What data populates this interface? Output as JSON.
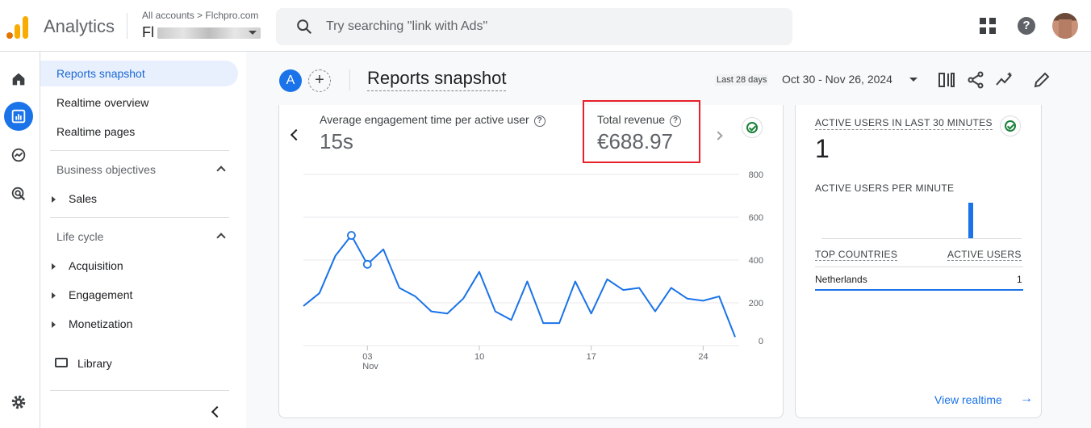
{
  "header": {
    "app_title": "Analytics",
    "account_breadcrumb": "All accounts > Flchpro.com",
    "account_name": "Fl",
    "search_placeholder": "Try searching \"link with Ads\""
  },
  "rail": {
    "icons": [
      "home-icon",
      "reports-icon",
      "explore-icon",
      "advertising-icon",
      "settings-icon"
    ]
  },
  "nav": {
    "reports_snapshot": "Reports snapshot",
    "realtime_overview": "Realtime overview",
    "realtime_pages": "Realtime pages",
    "business_objectives": "Business objectives",
    "sales": "Sales",
    "life_cycle": "Life cycle",
    "acquisition": "Acquisition",
    "engagement": "Engagement",
    "monetization": "Monetization",
    "library": "Library"
  },
  "toolbar": {
    "comparison_avatar": "A",
    "add_comparison": "+",
    "page_title": "Reports snapshot",
    "date_tag": "Last 28 days",
    "date_range": "Oct 30 - Nov 26, 2024"
  },
  "metrics": {
    "engagement_label": "Average engagement time per active user",
    "engagement_value": "15s",
    "revenue_label": "Total revenue",
    "revenue_value": "€688.97",
    "help_glyph": "?"
  },
  "chart_data": {
    "type": "line",
    "x": [
      "Oct 30",
      "Oct 31",
      "Nov 1",
      "Nov 2",
      "Nov 3",
      "Nov 4",
      "Nov 5",
      "Nov 6",
      "Nov 7",
      "Nov 8",
      "Nov 9",
      "Nov 10",
      "Nov 11",
      "Nov 12",
      "Nov 13",
      "Nov 14",
      "Nov 15",
      "Nov 16",
      "Nov 17",
      "Nov 18",
      "Nov 19",
      "Nov 20",
      "Nov 21",
      "Nov 22",
      "Nov 23",
      "Nov 24",
      "Nov 25",
      "Nov 26"
    ],
    "values": [
      185,
      245,
      420,
      515,
      380,
      450,
      270,
      230,
      160,
      150,
      220,
      345,
      160,
      120,
      300,
      105,
      105,
      300,
      150,
      310,
      260,
      270,
      160,
      270,
      220,
      210,
      230,
      40
    ],
    "highlight_points": [
      3,
      4
    ],
    "xtick_labels": [
      {
        "index": 4,
        "label": "03",
        "sub": "Nov"
      },
      {
        "index": 11,
        "label": "10",
        "sub": ""
      },
      {
        "index": 18,
        "label": "17",
        "sub": ""
      },
      {
        "index": 25,
        "label": "24",
        "sub": ""
      }
    ],
    "yticks": [
      0,
      200,
      400,
      600,
      800
    ],
    "ylim": [
      0,
      800
    ],
    "grid": true,
    "color": "#1a73e8"
  },
  "realtime": {
    "active_users_label": "ACTIVE USERS IN LAST 30 MINUTES",
    "active_users_value": "1",
    "per_minute_label": "ACTIVE USERS PER MINUTE",
    "per_minute_values": [
      0,
      0,
      0,
      0,
      0,
      0,
      0,
      0,
      0,
      0,
      0,
      0,
      0,
      0,
      0,
      0,
      0,
      0,
      0,
      0,
      0,
      0,
      1,
      0,
      0,
      0,
      0,
      0,
      0,
      0
    ],
    "top_countries_label": "TOP COUNTRIES",
    "active_users_col_label": "ACTIVE USERS",
    "countries": [
      {
        "name": "Netherlands",
        "count": "1"
      }
    ],
    "view_link": "View realtime",
    "arrow": "→"
  }
}
